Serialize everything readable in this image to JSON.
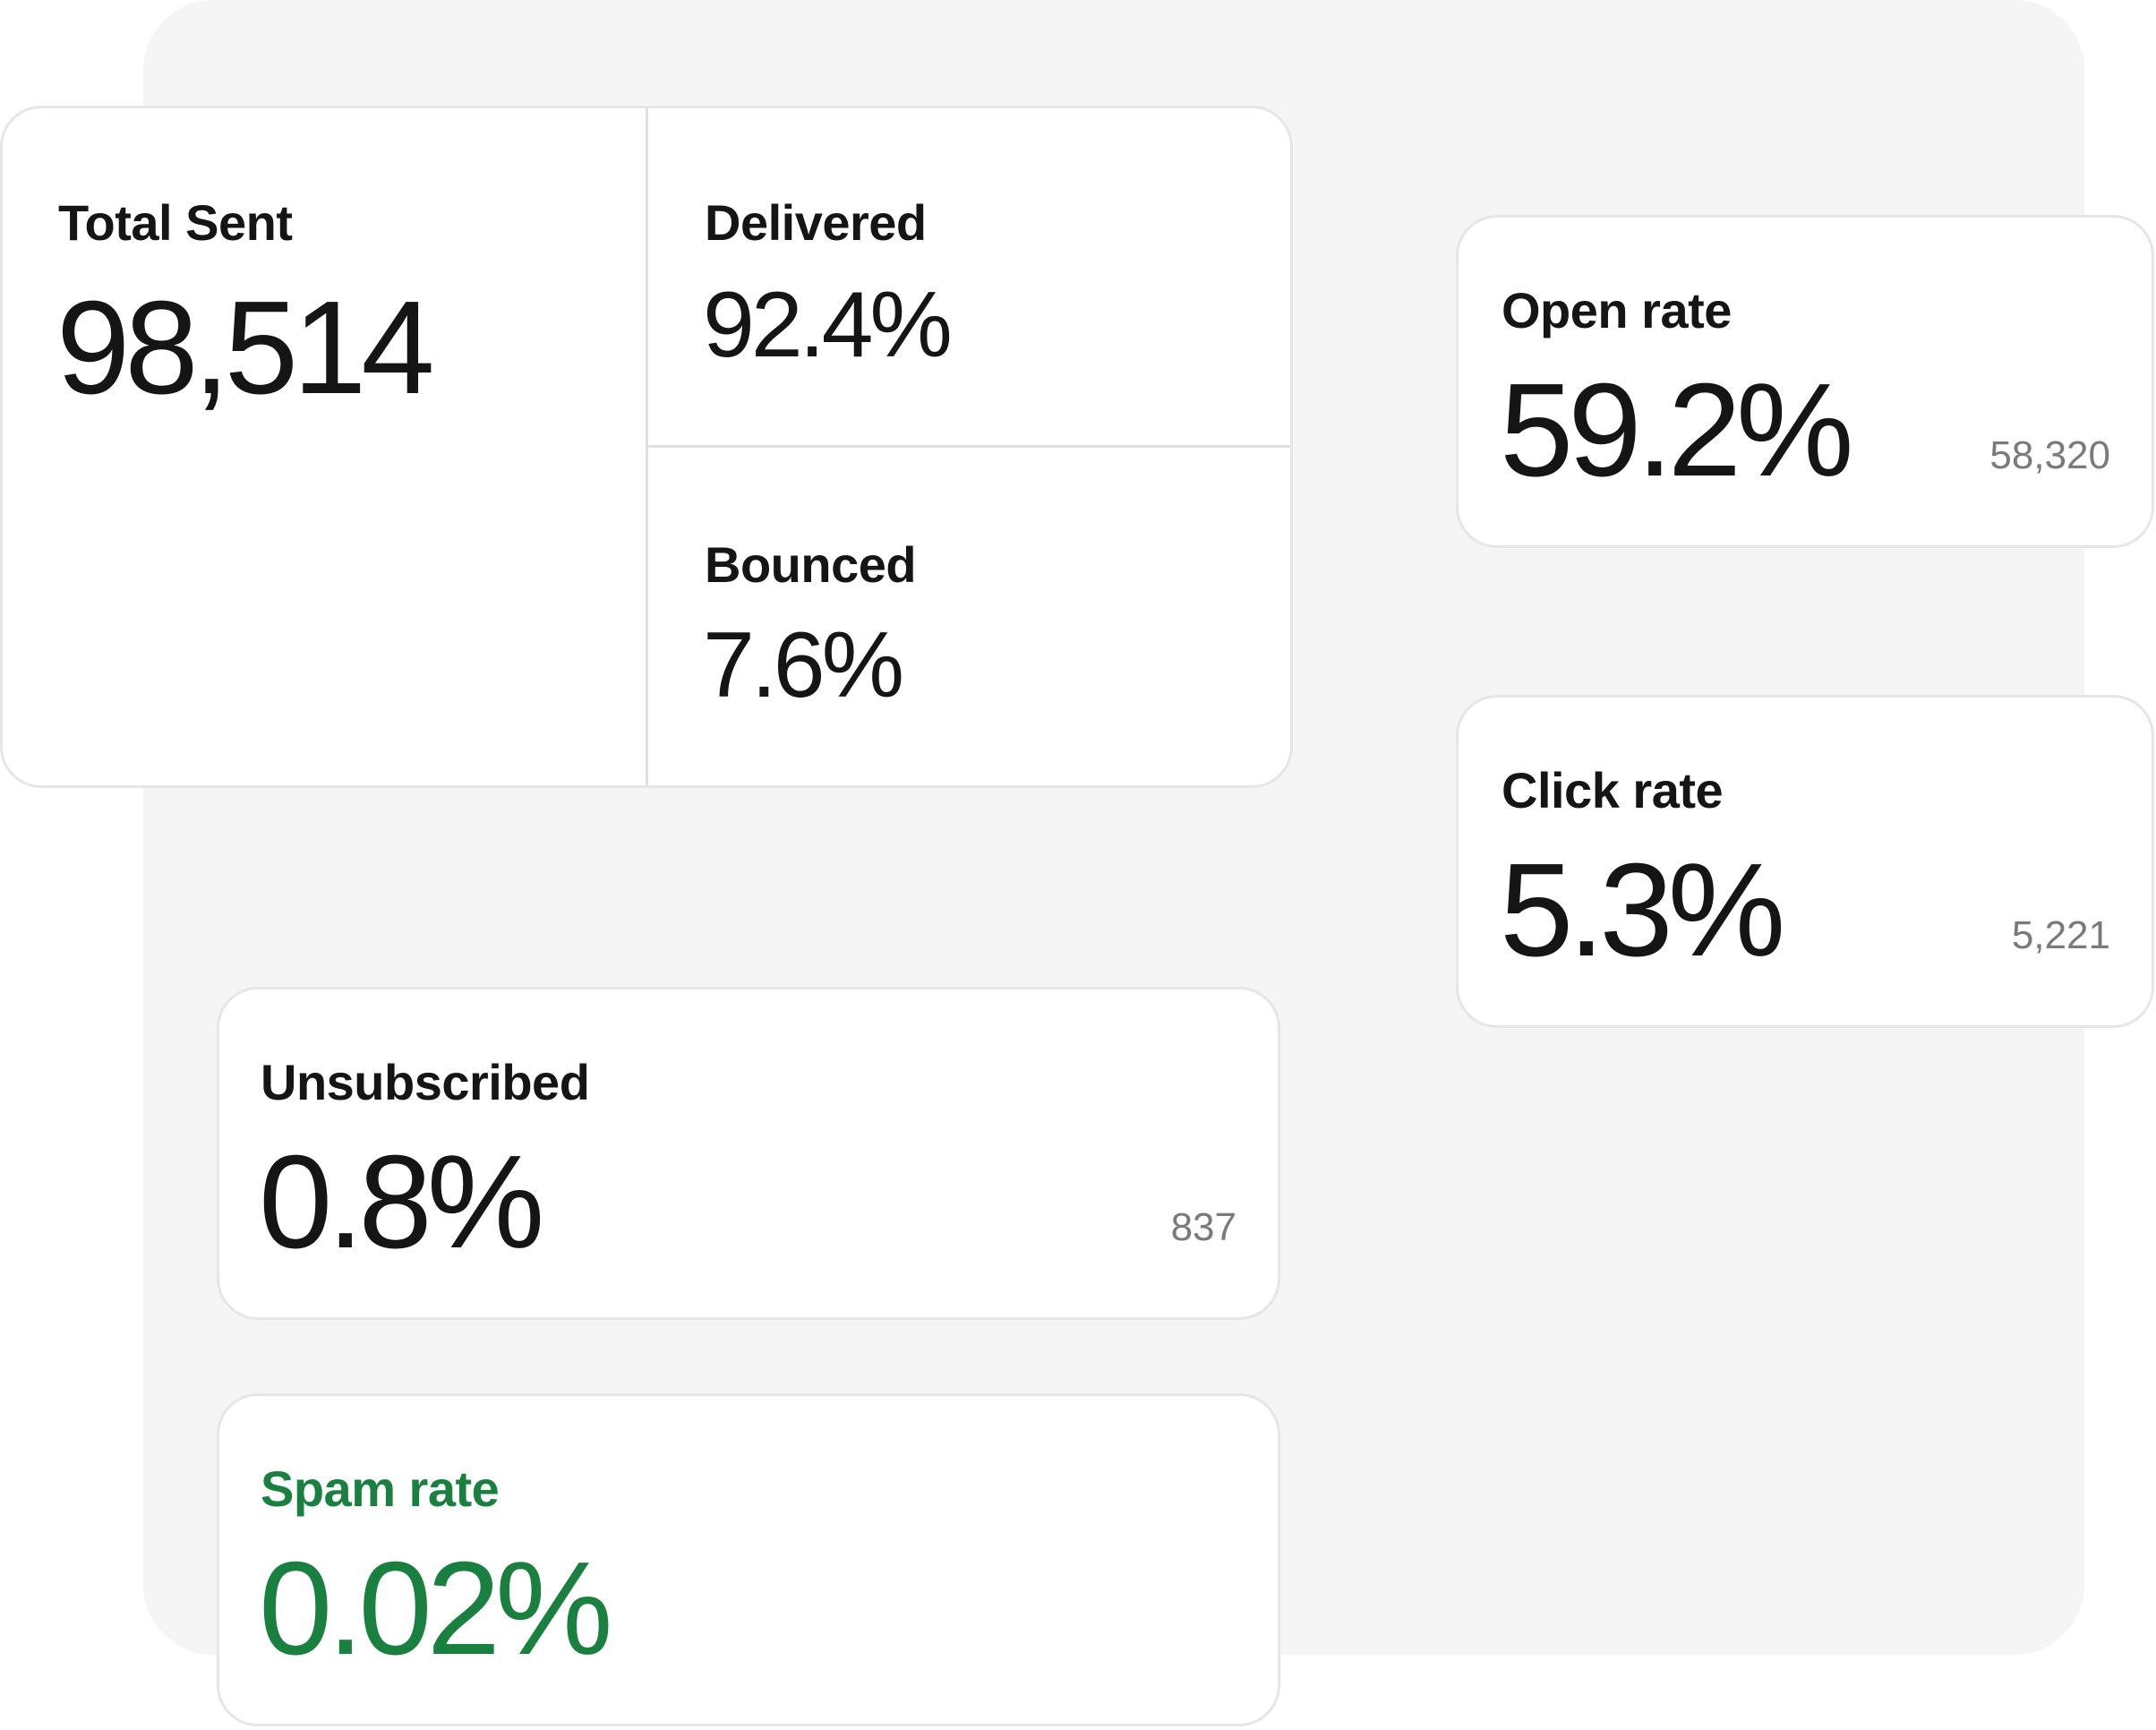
{
  "accent_color": "#1a8040",
  "summary": {
    "total_sent": {
      "label": "Total Sent",
      "value": "98,514"
    },
    "delivered": {
      "label": "Delivered",
      "value": "92.4%"
    },
    "bounced": {
      "label": "Bounced",
      "value": "7.6%"
    }
  },
  "open_rate": {
    "label": "Open rate",
    "value": "59.2%",
    "count": "58,320"
  },
  "click_rate": {
    "label": "Click rate",
    "value": "5.3%",
    "count": "5,221"
  },
  "unsubscribed": {
    "label": "Unsubscribed",
    "value": "0.8%",
    "count": "837"
  },
  "spam_rate": {
    "label": "Spam rate",
    "value": "0.02%"
  }
}
